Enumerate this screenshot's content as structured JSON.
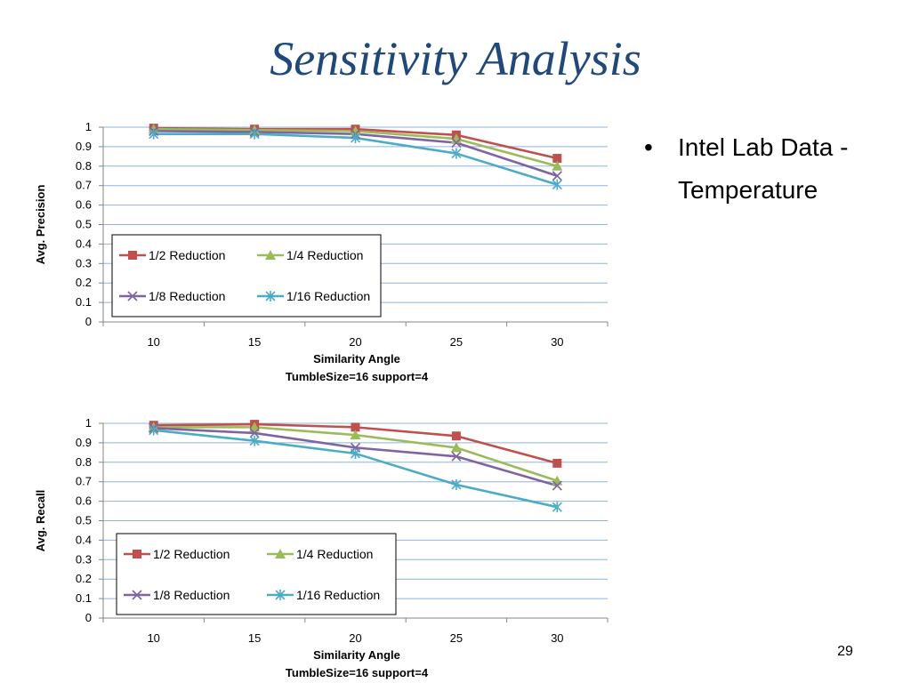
{
  "slide": {
    "title": "Sensitivity Analysis",
    "bullet": "Intel Lab Data - Temperature",
    "page_number": "29"
  },
  "chart_data": [
    {
      "type": "line",
      "title": "",
      "xlabel": "Similarity Angle",
      "caption": "TumbleSize=16 support=4",
      "ylabel": "Avg. Precision",
      "categories": [
        "10",
        "15",
        "20",
        "25",
        "30"
      ],
      "y_ticks": [
        "0",
        "0.1",
        "0.2",
        "0.3",
        "0.4",
        "0.5",
        "0.6",
        "0.7",
        "0.8",
        "0.9",
        "1"
      ],
      "ylim": [
        0,
        1
      ],
      "grid": true,
      "legend_position": "lower-left",
      "series": [
        {
          "name": "1/2 Reduction",
          "color": "#c0504d",
          "marker": "square",
          "values": [
            0.995,
            0.99,
            0.99,
            0.96,
            0.84
          ]
        },
        {
          "name": "1/4 Reduction",
          "color": "#9bbb59",
          "marker": "triangle",
          "values": [
            0.99,
            0.985,
            0.98,
            0.94,
            0.8
          ]
        },
        {
          "name": "1/8 Reduction",
          "color": "#8064a2",
          "marker": "x",
          "values": [
            0.98,
            0.975,
            0.965,
            0.92,
            0.75
          ]
        },
        {
          "name": "1/16 Reduction",
          "color": "#4bacc6",
          "marker": "star",
          "values": [
            0.965,
            0.965,
            0.945,
            0.865,
            0.705
          ]
        }
      ]
    },
    {
      "type": "line",
      "title": "",
      "xlabel": "Similarity Angle",
      "caption": "TumbleSize=16 support=4",
      "ylabel": "Avg. Recall",
      "categories": [
        "10",
        "15",
        "20",
        "25",
        "30"
      ],
      "y_ticks": [
        "0",
        "0.1",
        "0.2",
        "0.3",
        "0.4",
        "0.5",
        "0.6",
        "0.7",
        "0.8",
        "0.9",
        "1"
      ],
      "ylim": [
        0,
        1
      ],
      "grid": true,
      "legend_position": "lower-left",
      "series": [
        {
          "name": "1/2 Reduction",
          "color": "#c0504d",
          "marker": "square",
          "values": [
            0.99,
            0.995,
            0.98,
            0.935,
            0.795
          ]
        },
        {
          "name": "1/4 Reduction",
          "color": "#9bbb59",
          "marker": "triangle",
          "values": [
            0.98,
            0.98,
            0.94,
            0.875,
            0.705
          ]
        },
        {
          "name": "1/8 Reduction",
          "color": "#8064a2",
          "marker": "x",
          "values": [
            0.975,
            0.95,
            0.875,
            0.83,
            0.68
          ]
        },
        {
          "name": "1/16 Reduction",
          "color": "#4bacc6",
          "marker": "star",
          "values": [
            0.965,
            0.91,
            0.845,
            0.685,
            0.57
          ]
        }
      ]
    }
  ]
}
